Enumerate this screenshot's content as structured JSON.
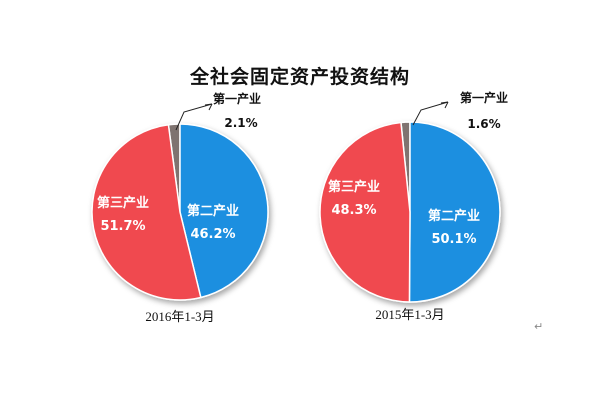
{
  "chart_data": [
    {
      "type": "pie",
      "title": "全社会固定资产投资结构",
      "caption": "2016年1-3月",
      "slices": [
        {
          "name": "第一产业",
          "value": 2.1,
          "label": "2.1%",
          "color": "#7f7370"
        },
        {
          "name": "第二产业",
          "value": 46.2,
          "label": "46.2%",
          "color": "#1e8fe0"
        },
        {
          "name": "第三产业",
          "value": 51.7,
          "label": "51.7%",
          "color": "#f0484f"
        }
      ]
    },
    {
      "type": "pie",
      "caption": "2015年1-3月",
      "slices": [
        {
          "name": "第一产业",
          "value": 1.6,
          "label": "1.6%",
          "color": "#7f7370"
        },
        {
          "name": "第二产业",
          "value": 50.1,
          "label": "50.1%",
          "color": "#1e8fe0"
        },
        {
          "name": "第三产业",
          "value": 48.3,
          "label": "48.3%",
          "color": "#f0484f"
        }
      ]
    }
  ],
  "paragraph_mark": "↵"
}
